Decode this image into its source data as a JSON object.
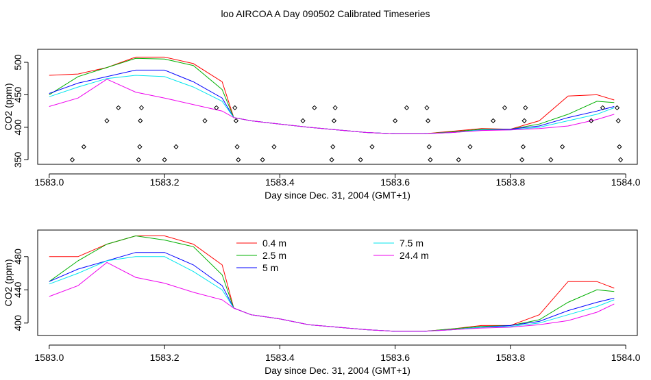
{
  "page_title": "loo AIRCOA A  Day 090502  Calibrated Timeseries",
  "colors": {
    "0.4 m": "#ff0000",
    "2.5 m": "#00b000",
    "5 m": "#0000ff",
    "7.5 m": "#00e5ee",
    "24.4 m": "#ee00ee",
    "axis": "#000000"
  },
  "chart_data": [
    {
      "type": "line",
      "xlabel": "Day since Dec. 31, 2004 (GMT+1)",
      "ylabel": "CO2 (ppm)",
      "xlim": [
        1582.98,
        1584.02
      ],
      "ylim": [
        343,
        520
      ],
      "x_ticks": [
        1583.0,
        1583.2,
        1583.4,
        1583.6,
        1583.8,
        1584.0
      ],
      "x_tick_labels": [
        "1583.0",
        "1583.2",
        "1583.4",
        "1583.6",
        "1583.8",
        "1584.0"
      ],
      "y_ticks": [
        350,
        400,
        450,
        500
      ],
      "y_tick_labels": [
        "350",
        "400",
        "450",
        "500"
      ],
      "grid": false,
      "legend": "none",
      "x": [
        1583.0,
        1583.05,
        1583.1,
        1583.15,
        1583.2,
        1583.25,
        1583.3,
        1583.32,
        1583.35,
        1583.4,
        1583.45,
        1583.5,
        1583.55,
        1583.6,
        1583.65,
        1583.7,
        1583.75,
        1583.8,
        1583.85,
        1583.9,
        1583.95,
        1583.98
      ],
      "series": [
        {
          "name": "0.4 m",
          "values": [
            480,
            482,
            492,
            508,
            508,
            498,
            470,
            415,
            410,
            405,
            400,
            396,
            392,
            390,
            390,
            394,
            398,
            397,
            410,
            448,
            450,
            442
          ]
        },
        {
          "name": "2.5 m",
          "values": [
            450,
            478,
            492,
            506,
            505,
            495,
            458,
            415,
            410,
            405,
            400,
            396,
            392,
            390,
            390,
            393,
            397,
            397,
            405,
            420,
            440,
            438
          ]
        },
        {
          "name": "5 m",
          "values": [
            452,
            468,
            478,
            488,
            488,
            470,
            445,
            415,
            410,
            405,
            400,
            396,
            392,
            390,
            390,
            392,
            396,
            397,
            402,
            415,
            425,
            432
          ]
        },
        {
          "name": "7.5 m",
          "values": [
            447,
            462,
            475,
            480,
            478,
            462,
            440,
            415,
            410,
            405,
            400,
            396,
            392,
            390,
            390,
            392,
            396,
            396,
            400,
            410,
            420,
            430
          ]
        },
        {
          "name": "24.4 m",
          "values": [
            432,
            445,
            474,
            454,
            445,
            435,
            425,
            415,
            410,
            405,
            400,
            396,
            392,
            390,
            390,
            392,
            395,
            396,
            398,
            402,
            412,
            420
          ]
        }
      ],
      "markers": {
        "style": "open-diamond",
        "points": [
          [
            1583.04,
            350
          ],
          [
            1583.06,
            370
          ],
          [
            1583.1,
            410
          ],
          [
            1583.12,
            430
          ],
          [
            1583.155,
            350
          ],
          [
            1583.157,
            370
          ],
          [
            1583.158,
            410
          ],
          [
            1583.16,
            430
          ],
          [
            1583.2,
            350
          ],
          [
            1583.22,
            370
          ],
          [
            1583.27,
            410
          ],
          [
            1583.29,
            430
          ],
          [
            1583.322,
            430
          ],
          [
            1583.324,
            410
          ],
          [
            1583.326,
            370
          ],
          [
            1583.328,
            350
          ],
          [
            1583.37,
            350
          ],
          [
            1583.39,
            370
          ],
          [
            1583.44,
            410
          ],
          [
            1583.46,
            430
          ],
          [
            1583.49,
            350
          ],
          [
            1583.492,
            370
          ],
          [
            1583.494,
            410
          ],
          [
            1583.496,
            430
          ],
          [
            1583.54,
            350
          ],
          [
            1583.56,
            370
          ],
          [
            1583.6,
            410
          ],
          [
            1583.62,
            430
          ],
          [
            1583.655,
            430
          ],
          [
            1583.657,
            410
          ],
          [
            1583.659,
            370
          ],
          [
            1583.661,
            350
          ],
          [
            1583.71,
            350
          ],
          [
            1583.73,
            370
          ],
          [
            1583.77,
            410
          ],
          [
            1583.79,
            430
          ],
          [
            1583.82,
            350
          ],
          [
            1583.822,
            370
          ],
          [
            1583.824,
            410
          ],
          [
            1583.826,
            430
          ],
          [
            1583.87,
            350
          ],
          [
            1583.89,
            370
          ],
          [
            1583.94,
            410
          ],
          [
            1583.96,
            430
          ],
          [
            1583.985,
            430
          ],
          [
            1583.987,
            410
          ],
          [
            1583.989,
            370
          ],
          [
            1583.991,
            350
          ]
        ]
      }
    },
    {
      "type": "line",
      "xlabel": "Day since Dec. 31, 2004 (GMT+1)",
      "ylabel": "CO2 (ppm)",
      "xlim": [
        1582.98,
        1584.02
      ],
      "ylim": [
        385,
        512
      ],
      "x_ticks": [
        1583.0,
        1583.2,
        1583.4,
        1583.6,
        1583.8,
        1584.0
      ],
      "x_tick_labels": [
        "1583.0",
        "1583.2",
        "1583.4",
        "1583.6",
        "1583.8",
        "1584.0"
      ],
      "y_ticks": [
        400,
        440,
        480
      ],
      "y_tick_labels": [
        "400",
        "440",
        "480"
      ],
      "grid": false,
      "legend": "top-center",
      "x": [
        1583.0,
        1583.05,
        1583.1,
        1583.15,
        1583.2,
        1583.25,
        1583.3,
        1583.32,
        1583.35,
        1583.4,
        1583.45,
        1583.5,
        1583.55,
        1583.6,
        1583.65,
        1583.7,
        1583.75,
        1583.8,
        1583.85,
        1583.9,
        1583.95,
        1583.98
      ],
      "series": [
        {
          "name": "0.4 m",
          "values": [
            480,
            480,
            495,
            505,
            505,
            495,
            470,
            418,
            410,
            405,
            398,
            395,
            392,
            390,
            390,
            393,
            397,
            397,
            410,
            450,
            450,
            442
          ]
        },
        {
          "name": "2.5 m",
          "values": [
            450,
            475,
            495,
            505,
            500,
            492,
            458,
            418,
            410,
            405,
            398,
            395,
            392,
            390,
            390,
            393,
            396,
            397,
            404,
            425,
            440,
            438
          ]
        },
        {
          "name": "5 m",
          "values": [
            450,
            465,
            475,
            485,
            485,
            470,
            445,
            418,
            410,
            405,
            398,
            395,
            392,
            390,
            390,
            392,
            395,
            397,
            402,
            415,
            425,
            430
          ]
        },
        {
          "name": "7.5 m",
          "values": [
            447,
            460,
            475,
            480,
            480,
            462,
            440,
            418,
            410,
            405,
            398,
            395,
            392,
            390,
            390,
            392,
            395,
            396,
            400,
            410,
            420,
            428
          ]
        },
        {
          "name": "24.4 m",
          "values": [
            432,
            445,
            473,
            455,
            448,
            437,
            428,
            418,
            410,
            405,
            398,
            395,
            392,
            390,
            390,
            392,
            394,
            395,
            398,
            403,
            413,
            423
          ]
        }
      ]
    }
  ]
}
